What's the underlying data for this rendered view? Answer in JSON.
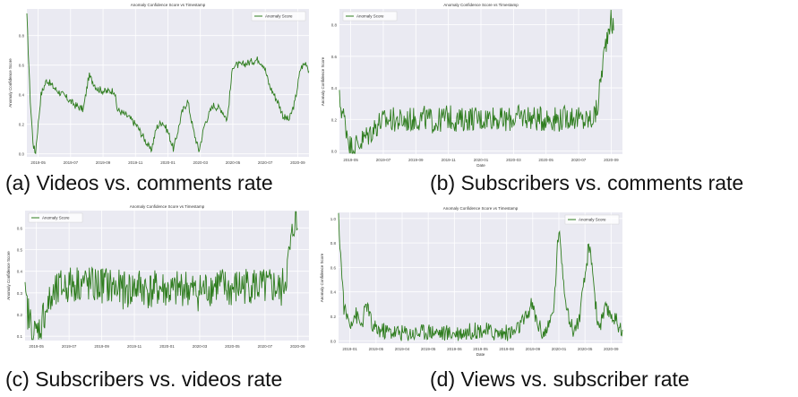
{
  "chart_data": [
    {
      "panel": "a",
      "type": "line",
      "title": "Anomaly Confidence Score vs Timestamp",
      "xlabel": "",
      "ylabel": "Anomaly Confidence Score",
      "legend": "top-right",
      "grid": true,
      "caption": "(a) Videos vs. comments rate",
      "series": [
        {
          "name": "Anomaly Score",
          "color": "#2f7d1f"
        }
      ],
      "xticks": [
        "2019-05",
        "2019-07",
        "2019-09",
        "2019-11",
        "2020-01",
        "2020-03",
        "2020-05",
        "2020-07",
        "2020-09"
      ],
      "yticks": [
        "0.0",
        "0.2",
        "0.4",
        "0.6",
        "0.8"
      ],
      "ylim": [
        -0.02,
        0.98
      ],
      "points": [
        [
          0,
          0.93
        ],
        [
          0.012,
          0.36
        ],
        [
          0.022,
          0.07
        ],
        [
          0.03,
          0.0
        ],
        [
          0.05,
          0.4
        ],
        [
          0.07,
          0.5
        ],
        [
          0.1,
          0.44
        ],
        [
          0.14,
          0.38
        ],
        [
          0.17,
          0.33
        ],
        [
          0.2,
          0.3
        ],
        [
          0.22,
          0.53
        ],
        [
          0.25,
          0.44
        ],
        [
          0.28,
          0.42
        ],
        [
          0.31,
          0.43
        ],
        [
          0.32,
          0.3
        ],
        [
          0.36,
          0.25
        ],
        [
          0.39,
          0.19
        ],
        [
          0.42,
          0.09
        ],
        [
          0.44,
          0.02
        ],
        [
          0.46,
          0.18
        ],
        [
          0.48,
          0.22
        ],
        [
          0.5,
          0.15
        ],
        [
          0.52,
          0.03
        ],
        [
          0.55,
          0.28
        ],
        [
          0.57,
          0.36
        ],
        [
          0.59,
          0.16
        ],
        [
          0.61,
          0.02
        ],
        [
          0.63,
          0.2
        ],
        [
          0.66,
          0.33
        ],
        [
          0.69,
          0.3
        ],
        [
          0.71,
          0.23
        ],
        [
          0.73,
          0.6
        ],
        [
          0.76,
          0.6
        ],
        [
          0.79,
          0.62
        ],
        [
          0.82,
          0.64
        ],
        [
          0.84,
          0.6
        ],
        [
          0.86,
          0.46
        ],
        [
          0.89,
          0.35
        ],
        [
          0.91,
          0.25
        ],
        [
          0.93,
          0.23
        ],
        [
          0.95,
          0.35
        ],
        [
          0.97,
          0.58
        ],
        [
          0.99,
          0.62
        ],
        [
          1.0,
          0.56
        ]
      ]
    },
    {
      "panel": "b",
      "type": "line",
      "title": "Anomaly Confidence Score vs Timestamp",
      "xlabel": "Date",
      "ylabel": "Anomaly Confidence Score",
      "legend": "top-left",
      "grid": true,
      "caption": "(b) Subscribers vs. comments rate",
      "series": [
        {
          "name": "Anomaly Score",
          "color": "#2f7d1f"
        }
      ],
      "xticks": [
        "2019-05",
        "2019-07",
        "2019-09",
        "2019-11",
        "2020-01",
        "2020-03",
        "2020-05",
        "2020-07",
        "2020-09"
      ],
      "yticks": [
        "0.0",
        "0.2",
        "0.4",
        "0.6",
        "0.8"
      ],
      "ylim": [
        -0.02,
        0.9
      ],
      "points": [
        [
          0,
          0.32
        ],
        [
          0.02,
          0.18
        ],
        [
          0.04,
          0.02
        ],
        [
          0.07,
          0.05
        ],
        [
          0.1,
          0.1
        ],
        [
          0.14,
          0.18
        ],
        [
          0.18,
          0.2
        ],
        [
          0.22,
          0.19
        ],
        [
          0.26,
          0.2
        ],
        [
          0.3,
          0.21
        ],
        [
          0.34,
          0.18
        ],
        [
          0.38,
          0.22
        ],
        [
          0.42,
          0.19
        ],
        [
          0.46,
          0.21
        ],
        [
          0.5,
          0.2
        ],
        [
          0.54,
          0.22
        ],
        [
          0.58,
          0.19
        ],
        [
          0.62,
          0.21
        ],
        [
          0.66,
          0.22
        ],
        [
          0.7,
          0.2
        ],
        [
          0.74,
          0.21
        ],
        [
          0.78,
          0.2
        ],
        [
          0.82,
          0.22
        ],
        [
          0.86,
          0.19
        ],
        [
          0.89,
          0.2
        ],
        [
          0.91,
          0.25
        ],
        [
          0.93,
          0.55
        ],
        [
          0.95,
          0.78
        ],
        [
          0.96,
          0.86
        ],
        [
          0.97,
          0.72
        ]
      ],
      "noise": 0.08
    },
    {
      "panel": "c",
      "type": "line",
      "title": "Anomaly Confidence Score vs Timestamp",
      "xlabel": "",
      "ylabel": "Anomaly Confidence Score",
      "legend": "top-left",
      "grid": true,
      "caption": "(c) Subscribers vs. videos rate",
      "series": [
        {
          "name": "Anomaly Score",
          "color": "#2f7d1f"
        }
      ],
      "xticks": [
        "2019-05",
        "2019-07",
        "2019-09",
        "2019-11",
        "2020-01",
        "2020-03",
        "2020-05",
        "2020-07",
        "2020-09"
      ],
      "yticks": [
        "0.1",
        "0.2",
        "0.3",
        "0.4",
        "0.5",
        "0.6"
      ],
      "ylim": [
        0.08,
        0.68
      ],
      "points": [
        [
          0,
          0.27
        ],
        [
          0.02,
          0.15
        ],
        [
          0.03,
          0.1
        ],
        [
          0.05,
          0.13
        ],
        [
          0.07,
          0.22
        ],
        [
          0.1,
          0.28
        ],
        [
          0.13,
          0.33
        ],
        [
          0.17,
          0.34
        ],
        [
          0.2,
          0.35
        ],
        [
          0.24,
          0.33
        ],
        [
          0.28,
          0.34
        ],
        [
          0.32,
          0.32
        ],
        [
          0.36,
          0.31
        ],
        [
          0.4,
          0.33
        ],
        [
          0.44,
          0.31
        ],
        [
          0.48,
          0.32
        ],
        [
          0.52,
          0.3
        ],
        [
          0.56,
          0.33
        ],
        [
          0.6,
          0.3
        ],
        [
          0.64,
          0.32
        ],
        [
          0.68,
          0.34
        ],
        [
          0.72,
          0.31
        ],
        [
          0.76,
          0.33
        ],
        [
          0.8,
          0.34
        ],
        [
          0.84,
          0.32
        ],
        [
          0.88,
          0.33
        ],
        [
          0.9,
          0.3
        ],
        [
          0.92,
          0.38
        ],
        [
          0.94,
          0.55
        ],
        [
          0.95,
          0.65
        ],
        [
          0.96,
          0.58
        ]
      ],
      "noise": 0.09
    },
    {
      "panel": "d",
      "type": "line",
      "title": "Anomaly Confidence Score vs Timestamp",
      "xlabel": "Date",
      "ylabel": "Anomaly Confidence Score",
      "legend": "top-right",
      "grid": true,
      "caption": "(d) Views vs. subscriber rate",
      "series": [
        {
          "name": "Anomaly Score",
          "color": "#2f7d1f"
        }
      ],
      "xticks": [
        "2019-01",
        "2019-05",
        "2019-04",
        "2019-05",
        "2019-06",
        "2019-05",
        "2019-08",
        "2019-09",
        "2020-01",
        "2020-05",
        "2020-09"
      ],
      "yticks": [
        "0.0",
        "0.2",
        "0.4",
        "0.6",
        "0.8",
        "1.0"
      ],
      "ylim": [
        -0.02,
        1.05
      ],
      "points": [
        [
          0,
          1.0
        ],
        [
          0.01,
          0.6
        ],
        [
          0.02,
          0.25
        ],
        [
          0.04,
          0.15
        ],
        [
          0.06,
          0.22
        ],
        [
          0.08,
          0.12
        ],
        [
          0.1,
          0.3
        ],
        [
          0.12,
          0.1
        ],
        [
          0.16,
          0.08
        ],
        [
          0.2,
          0.07
        ],
        [
          0.26,
          0.06
        ],
        [
          0.32,
          0.08
        ],
        [
          0.38,
          0.06
        ],
        [
          0.44,
          0.07
        ],
        [
          0.5,
          0.09
        ],
        [
          0.56,
          0.06
        ],
        [
          0.62,
          0.07
        ],
        [
          0.66,
          0.18
        ],
        [
          0.68,
          0.3
        ],
        [
          0.7,
          0.15
        ],
        [
          0.72,
          0.06
        ],
        [
          0.74,
          0.1
        ],
        [
          0.76,
          0.3
        ],
        [
          0.77,
          0.75
        ],
        [
          0.78,
          0.88
        ],
        [
          0.79,
          0.55
        ],
        [
          0.81,
          0.18
        ],
        [
          0.83,
          0.08
        ],
        [
          0.85,
          0.2
        ],
        [
          0.87,
          0.55
        ],
        [
          0.88,
          0.75
        ],
        [
          0.89,
          0.7
        ],
        [
          0.9,
          0.45
        ],
        [
          0.91,
          0.18
        ],
        [
          0.92,
          0.12
        ],
        [
          0.94,
          0.25
        ],
        [
          0.96,
          0.22
        ],
        [
          0.98,
          0.15
        ],
        [
          1.0,
          0.1
        ]
      ],
      "noise": 0.07
    }
  ]
}
